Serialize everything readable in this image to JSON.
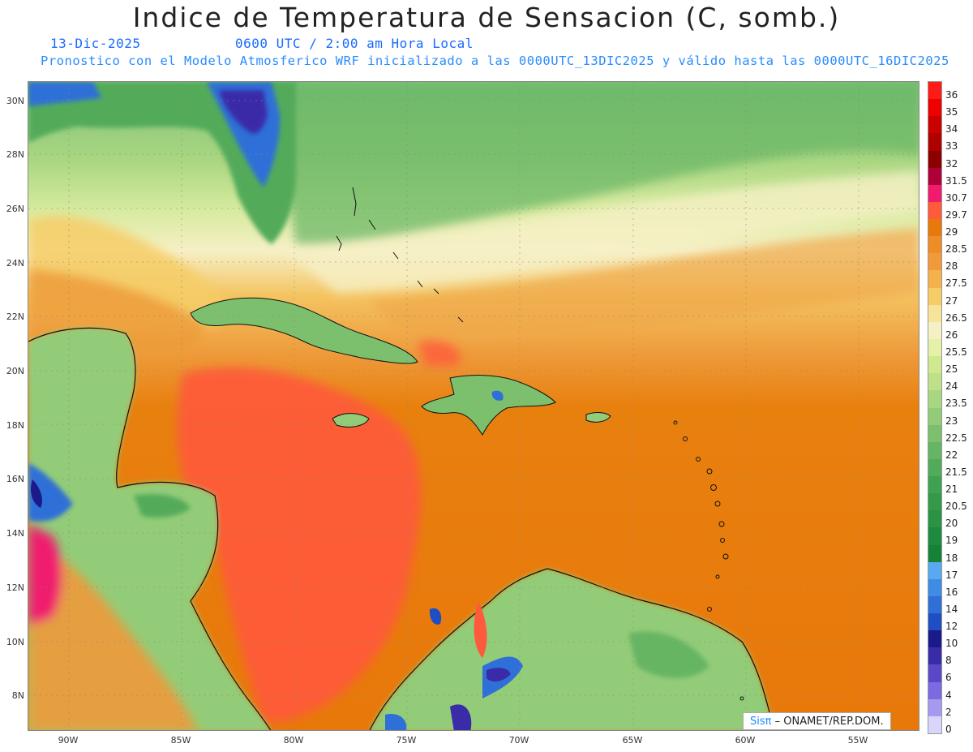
{
  "header": {
    "title": "Indice de Temperatura de Sensacion (C, somb.)",
    "date": "13-Dic-2025",
    "time": "0600 UTC / 2:00 am Hora Local",
    "description": "Pronostico con el Modelo Atmosferico WRF inicializado a las 0000UTC_13DIC2025 y válido hasta las  0000UTC_16DIC2025"
  },
  "axes": {
    "lat_labels": [
      "30N",
      "28N",
      "26N",
      "24N",
      "22N",
      "20N",
      "18N",
      "16N",
      "14N",
      "12N",
      "10N",
      "8N"
    ],
    "lon_labels": [
      "90W",
      "85W",
      "80W",
      "75W",
      "70W",
      "65W",
      "60W",
      "55W"
    ]
  },
  "legend": {
    "labels": [
      "36",
      "35",
      "34",
      "33",
      "32",
      "31.5",
      "30.7",
      "29.7",
      "29",
      "28.5",
      "28",
      "27.5",
      "27",
      "26.5",
      "26",
      "25.5",
      "25",
      "24",
      "23.5",
      "23",
      "22.5",
      "22",
      "21.5",
      "21",
      "20.5",
      "20",
      "19",
      "18",
      "17",
      "16",
      "14",
      "12",
      "10",
      "8",
      "6",
      "4",
      "2",
      "0"
    ],
    "colors": [
      "#ff1a1a",
      "#ee0000",
      "#cc0000",
      "#b00000",
      "#8e0000",
      "#b0003a",
      "#f01a6e",
      "#ff5a3c",
      "#e8780a",
      "#ee8c28",
      "#f09a3c",
      "#f4b24a",
      "#f6cc66",
      "#f8e39a",
      "#f6f0c6",
      "#e6f0a8",
      "#d0e890",
      "#bde088",
      "#a9d681",
      "#93cc78",
      "#7cc06e",
      "#66b564",
      "#52ab5a",
      "#40a251",
      "#349a4a",
      "#2c9244",
      "#1e8a3e",
      "#168236",
      "#5aa8f0",
      "#3f8ce6",
      "#2f6fd8",
      "#1f4ec4",
      "#1a1a8a",
      "#3a2ba8",
      "#5b48c8",
      "#7b6ae0",
      "#a59af0",
      "#d8d4fa"
    ]
  },
  "credit": {
    "brand": "Sisπ",
    "org": " – ONAMET/REP.DOM."
  }
}
